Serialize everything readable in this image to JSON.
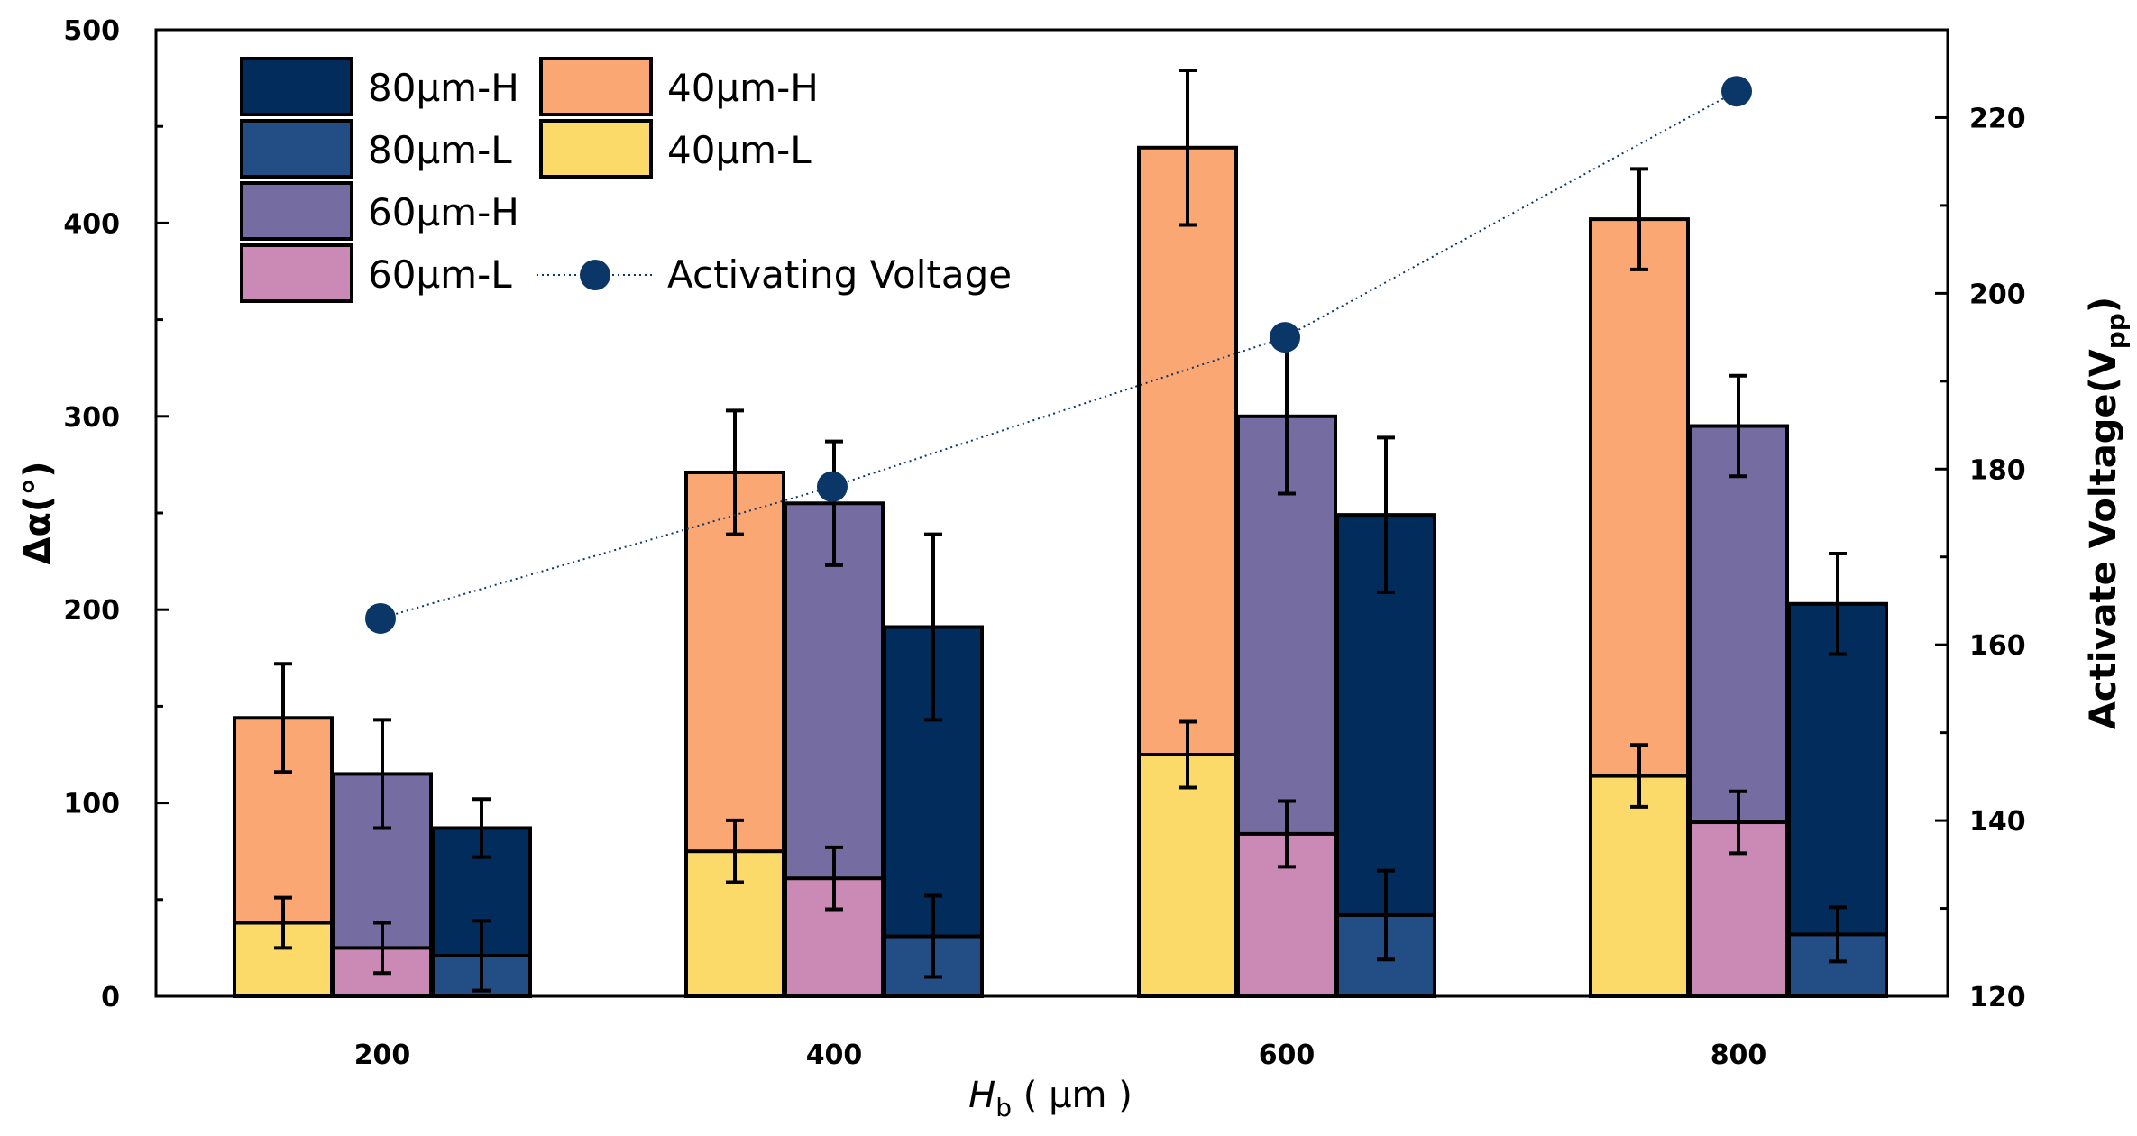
{
  "chart_data": {
    "type": "bar",
    "stacked_pairs": true,
    "categories": [
      "200",
      "400",
      "600",
      "800"
    ],
    "xlabel_main": "H",
    "xlabel_sub": "b",
    "xlabel_unit": " ( μm )",
    "ylabel": "Δα(°)",
    "ylabel_right_main": "Activate Voltage(V",
    "ylabel_right_sub": "pp",
    "ylabel_right_close": ")",
    "ylim": [
      0,
      500
    ],
    "yticks": [
      "0",
      "100",
      "200",
      "300",
      "400",
      "500"
    ],
    "ytick_values": [
      0,
      100,
      200,
      300,
      400,
      500
    ],
    "y2lim": [
      120,
      230
    ],
    "y2ticks": [
      "120",
      "140",
      "160",
      "180",
      "200",
      "220"
    ],
    "y2tick_values": [
      120,
      140,
      160,
      180,
      200,
      220
    ],
    "groups": [
      {
        "name": "40μm",
        "high": {
          "name": "40μm-H",
          "values": [
            144,
            271,
            439,
            402
          ],
          "err": [
            28,
            32,
            40,
            26
          ],
          "color": "#FBA774"
        },
        "low": {
          "name": "40μm-L",
          "values": [
            38,
            75,
            125,
            114
          ],
          "err": [
            13,
            16,
            17,
            16
          ],
          "color": "#FCDA69"
        }
      },
      {
        "name": "60μm",
        "high": {
          "name": "60μm-H",
          "values": [
            115,
            255,
            300,
            295
          ],
          "err": [
            28,
            32,
            40,
            26
          ],
          "color": "#756CA2"
        },
        "low": {
          "name": "60μm-L",
          "values": [
            25,
            61,
            84,
            90
          ],
          "err": [
            13,
            16,
            17,
            16
          ],
          "color": "#CB89B6"
        }
      },
      {
        "name": "80μm",
        "high": {
          "name": "80μm-H",
          "values": [
            87,
            191,
            249,
            203
          ],
          "err": [
            15,
            48,
            40,
            26
          ],
          "color": "#022C5B"
        },
        "low": {
          "name": "80μm-L",
          "values": [
            21,
            31,
            42,
            32
          ],
          "err": [
            18,
            21,
            23,
            14
          ],
          "color": "#234D85"
        }
      }
    ],
    "line_series": {
      "name": "Activating Voltage",
      "axis": "right",
      "values": [
        163,
        178,
        195,
        223
      ],
      "color": "#0B3768"
    },
    "legend_entries": [
      "80μm-H",
      "40μm-H",
      "80μm-L",
      "40μm-L",
      "60μm-H",
      "60μm-L",
      "Activating Voltage"
    ],
    "legend_position": "top-left"
  }
}
